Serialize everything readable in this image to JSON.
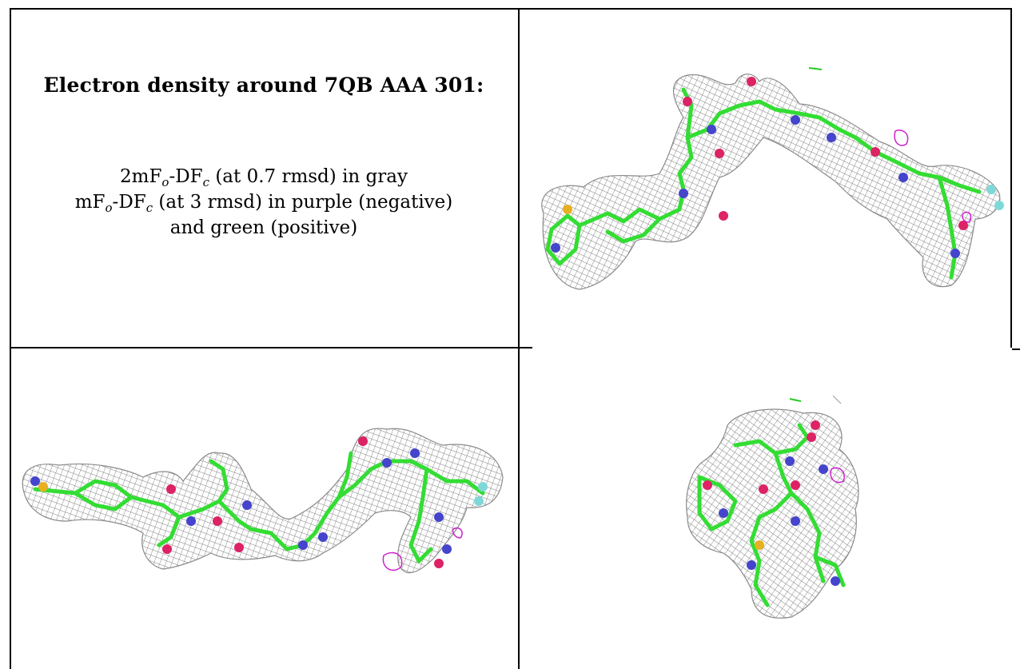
{
  "caption": {
    "title": "Electron density around 7QB AAA 301:",
    "line1": {
      "pre": "2mF",
      "sub1": "o",
      "mid": "-DF",
      "sub2": "c",
      "post": " (at 0.7 rmsd) in gray"
    },
    "line2": {
      "pre": "mF",
      "sub1": "o",
      "mid": "-DF",
      "sub2": "c",
      "post": " (at 3 rmsd) in purple (negative)"
    },
    "line3": "and green (positive)"
  },
  "panels": [
    {
      "view": "top-right",
      "description_color_mesh": "#8a8a8a"
    },
    {
      "view": "bottom-left",
      "description_color_mesh": "#8a8a8a"
    },
    {
      "view": "bottom-right",
      "description_color_mesh": "#8a8a8a"
    }
  ],
  "colors": {
    "mesh": "#8a8a8a",
    "carbon": "#33dd33",
    "nitrogen": "#4444cc",
    "oxygen": "#dd2266",
    "sulfur": "#e8b020",
    "fluorine": "#7fd8d8",
    "negative_density": "#cc22cc",
    "positive_density": "#22cc22"
  }
}
